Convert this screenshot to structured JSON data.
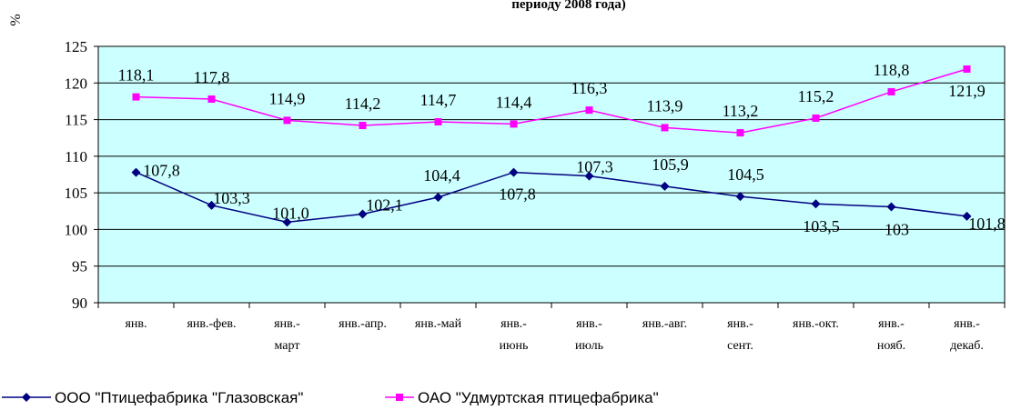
{
  "chart_data": {
    "type": "line",
    "title": "периоду 2008 года)",
    "ylabel": "%",
    "ylim": [
      90,
      125
    ],
    "yticks": [
      90,
      95,
      100,
      105,
      110,
      115,
      120,
      125
    ],
    "grid": true,
    "legend_position": "bottom-left",
    "categories": [
      [
        "янв."
      ],
      [
        "янв.-фев."
      ],
      [
        "янв.-",
        "март"
      ],
      [
        "янв.-апр."
      ],
      [
        "янв.-май"
      ],
      [
        "янв.-",
        "июнь"
      ],
      [
        "янв.-",
        "июль"
      ],
      [
        "янв.-авг."
      ],
      [
        "янв.-",
        "сент."
      ],
      [
        "янв.-окт."
      ],
      [
        "янв.-",
        "нояб."
      ],
      [
        "янв.-",
        "декаб."
      ]
    ],
    "series": [
      {
        "name": "ООО \"Птицефабрика \"Глазовская\"",
        "color": "#000080",
        "marker": "diamond",
        "values": [
          107.8,
          103.3,
          101.0,
          102.1,
          104.4,
          107.8,
          107.3,
          105.9,
          104.5,
          103.5,
          103.1,
          101.8
        ],
        "labels": [
          "107,8",
          "103,3",
          "101,0",
          "102,1",
          "104,4",
          "107,8",
          "107,3",
          "105,9",
          "104,5",
          "103,5",
          "103",
          "101,8"
        ]
      },
      {
        "name": "ОАО  \"Удмуртская птицефабрика\"",
        "color": "#ff00ff",
        "marker": "square",
        "values": [
          118.1,
          117.8,
          114.9,
          114.2,
          114.7,
          114.4,
          116.3,
          113.9,
          113.2,
          115.2,
          118.8,
          121.9
        ],
        "labels": [
          "118,1",
          "117,8",
          "114,9",
          "114,2",
          "114,7",
          "114,4",
          "116,3",
          "113,9",
          "113,2",
          "115,2",
          "118,8",
          "121,9"
        ]
      }
    ],
    "plot_background": "#ccffff"
  }
}
